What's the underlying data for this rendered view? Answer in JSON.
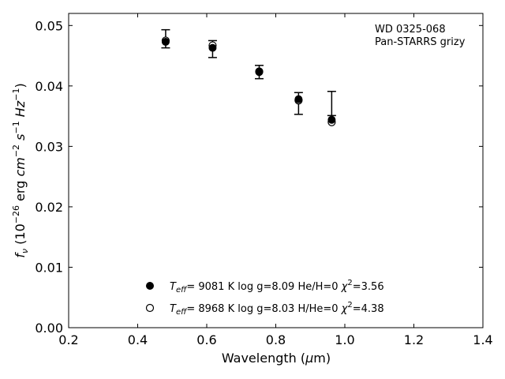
{
  "chart_data": {
    "type": "scatter",
    "title": "",
    "xlabel": "Wavelength (μm)",
    "ylabel": "f_ν (10⁻²⁶ erg cm⁻² s⁻¹ Hz⁻¹)",
    "xlim": [
      0.2,
      1.4
    ],
    "ylim": [
      0.0,
      0.052
    ],
    "xticks": [
      "0.2",
      "0.4",
      "0.6",
      "0.8",
      "1.0",
      "1.2",
      "1.4"
    ],
    "yticks": [
      "0.00",
      "0.01",
      "0.02",
      "0.03",
      "0.04",
      "0.05"
    ],
    "grid": false,
    "legend_position": "bottom-center",
    "annotation": [
      "WD 0325-068",
      "Pan-STARRS grizy"
    ],
    "observed": {
      "x": [
        0.481,
        0.617,
        0.752,
        0.866,
        0.962
      ],
      "y": [
        0.0478,
        0.0461,
        0.0423,
        0.0371,
        0.0371
      ],
      "yerr": [
        0.0015,
        0.0014,
        0.0011,
        0.0018,
        0.002
      ]
    },
    "series": [
      {
        "name": "Teff= 9081 K log g=8.09 He/H=0 χ2=3.56",
        "legend": {
          "teff": "9081 K",
          "logg": "log g=8.09",
          "comp": "He/H=0",
          "chi2": "=3.56"
        },
        "marker": "filled-circle",
        "x": [
          0.481,
          0.617,
          0.752,
          0.866,
          0.962
        ],
        "y": [
          0.0473,
          0.0463,
          0.0423,
          0.0378,
          0.0344
        ]
      },
      {
        "name": "Teff= 8968 K log g=8.03 H/He=0 χ2=4.38",
        "legend": {
          "teff": "8968 K",
          "logg": "log g=8.03",
          "comp": "H/He=0",
          "chi2": "=4.38"
        },
        "marker": "open-circle",
        "x": [
          0.481,
          0.617,
          0.752,
          0.866,
          0.962
        ],
        "y": [
          0.0475,
          0.0467,
          0.0424,
          0.0376,
          0.034
        ]
      }
    ]
  }
}
